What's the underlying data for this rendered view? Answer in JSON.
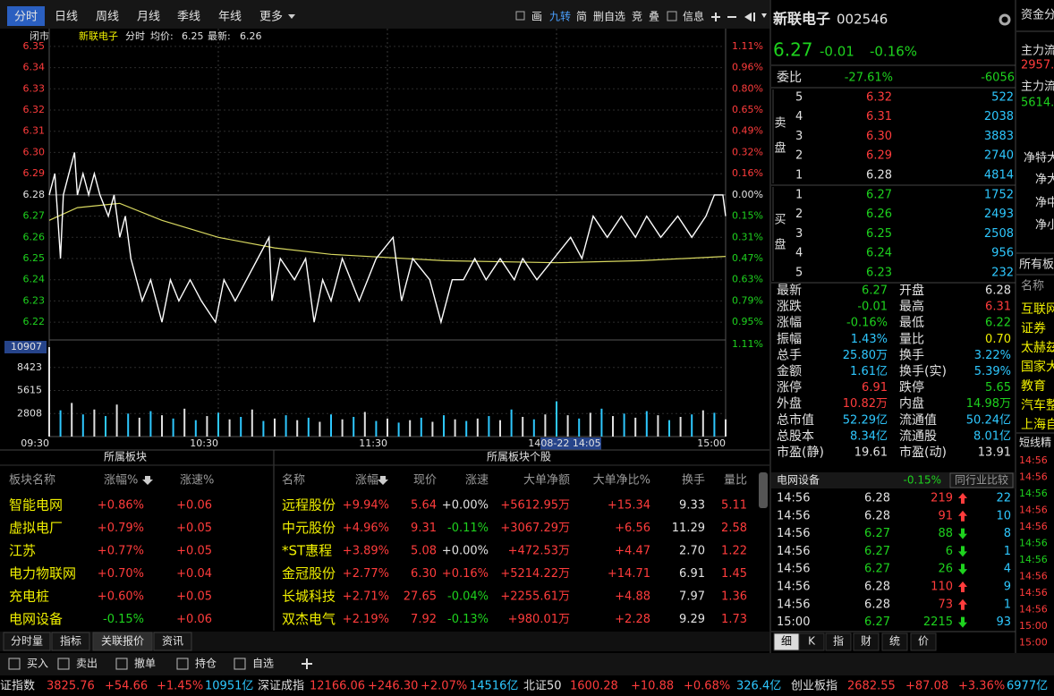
{
  "toolbar": {
    "periods": [
      "分时",
      "日线",
      "周线",
      "月线",
      "季线",
      "年线",
      "更多"
    ],
    "tools": [
      "画",
      "九转",
      "简",
      "删自选",
      "竞",
      "叠",
      "信息"
    ]
  },
  "chart": {
    "header": {
      "status": "闭市",
      "name": "新联电子",
      "mode": "分时",
      "avg_label": "均价:",
      "avg": 6.25,
      "last_label": "最新:",
      "last": 6.26
    },
    "ylim": [
      6.215,
      6.355
    ],
    "yticks": [
      6.35,
      6.34,
      6.33,
      6.32,
      6.31,
      {
        "value": 6.3,
        "label": "6.30"
      },
      6.29,
      6.28,
      6.27,
      6.26,
      6.25,
      6.24,
      6.23,
      6.22
    ],
    "pct_labels": [
      "1.11%",
      "0.96%",
      "0.80%",
      "0.65%",
      "0.49%",
      "0.32%",
      "0.16%",
      "0.00%",
      "0.15%",
      "0.31%",
      "0.47%",
      "0.63%",
      "0.79%",
      "0.95%",
      "1.11%"
    ],
    "xlim": [
      0,
      240
    ],
    "xticks": [
      {
        "value": 0,
        "label": "09:30"
      },
      {
        "value": 60,
        "label": "10:30"
      },
      {
        "value": 120,
        "label": "11:30"
      },
      {
        "value": 180,
        "label": "14:00"
      },
      {
        "value": 240,
        "label": "15:00"
      }
    ],
    "cursor": "08-22 14:05",
    "price": {
      "color": "#ffffff",
      "x": [
        0,
        2,
        3,
        4,
        5,
        7,
        9,
        10,
        12,
        14,
        16,
        18,
        21,
        23,
        25,
        27,
        29,
        33,
        36,
        40,
        43,
        46,
        50,
        54,
        59,
        62,
        66,
        70,
        74,
        78,
        79,
        82,
        87,
        91,
        94,
        97,
        100,
        104,
        107,
        110,
        116,
        122,
        125,
        129,
        135,
        139,
        143,
        147,
        151,
        155,
        160,
        165,
        168,
        173,
        179,
        185,
        189,
        193,
        198,
        203,
        208,
        212,
        217,
        223,
        228,
        233,
        236,
        239,
        240
      ],
      "values": [
        6.28,
        6.29,
        6.27,
        6.25,
        6.28,
        6.29,
        6.3,
        6.28,
        6.29,
        6.28,
        6.29,
        6.28,
        6.27,
        6.28,
        6.26,
        6.27,
        6.25,
        6.23,
        6.24,
        6.22,
        6.24,
        6.23,
        6.24,
        6.23,
        6.22,
        6.24,
        6.23,
        6.24,
        6.25,
        6.26,
        6.23,
        6.25,
        6.24,
        6.25,
        6.22,
        6.24,
        6.23,
        6.25,
        6.24,
        6.23,
        6.25,
        6.26,
        6.23,
        6.25,
        6.24,
        6.22,
        6.24,
        6.24,
        6.25,
        6.24,
        6.25,
        6.24,
        6.25,
        6.24,
        6.25,
        6.26,
        6.25,
        6.27,
        6.26,
        6.27,
        6.26,
        6.27,
        6.26,
        6.27,
        6.26,
        6.27,
        6.28,
        6.28,
        6.27
      ]
    },
    "average": {
      "color": "#d8d860",
      "x": [
        0,
        10,
        25,
        40,
        60,
        80,
        100,
        140,
        180,
        210,
        240
      ],
      "values": [
        6.268,
        6.274,
        6.276,
        6.268,
        6.26,
        6.255,
        6.252,
        6.249,
        6.248,
        6.249,
        6.251
      ]
    },
    "volume": {
      "ylim": [
        0,
        10907
      ],
      "yticks": [
        10907,
        8423,
        5615,
        2808
      ],
      "x": [
        0,
        4,
        8,
        12,
        16,
        20,
        24,
        28,
        32,
        36,
        40,
        44,
        48,
        52,
        56,
        60,
        64,
        68,
        72,
        76,
        80,
        84,
        88,
        92,
        96,
        100,
        104,
        108,
        112,
        116,
        120,
        124,
        128,
        132,
        136,
        140,
        144,
        148,
        152,
        156,
        160,
        164,
        168,
        172,
        176,
        180,
        184,
        188,
        192,
        196,
        200,
        204,
        208,
        212,
        216,
        220,
        224,
        228,
        232,
        236,
        240
      ],
      "values": [
        10907,
        3200,
        4100,
        2700,
        3300,
        2500,
        3900,
        2800,
        2300,
        3100,
        2600,
        2200,
        3400,
        2000,
        2500,
        2900,
        2100,
        2400,
        3300,
        1900,
        2200,
        2600,
        2000,
        2300,
        1800,
        2700,
        2100,
        2400,
        3000,
        1900,
        2200,
        1700,
        2000,
        2300,
        1800,
        2600,
        2100,
        1900,
        2200,
        2500,
        2000,
        3300,
        2400,
        2100,
        2700,
        4300,
        2600,
        2200,
        2900,
        3400,
        2500,
        2800,
        2300,
        3100,
        2600,
        2000,
        2400,
        2700,
        3200,
        2900,
        2100
      ]
    }
  },
  "sectors": {
    "title": "所属板块",
    "headers": [
      "板块名称",
      "涨幅%",
      "涨速%"
    ],
    "rows": [
      [
        "智能电网",
        "+0.86%",
        "+0.06"
      ],
      [
        "虚拟电厂",
        "+0.79%",
        "+0.05"
      ],
      [
        "江苏",
        "+0.77%",
        "+0.05"
      ],
      [
        "电力物联网",
        "+0.70%",
        "+0.04"
      ],
      [
        "充电桩",
        "+0.60%",
        "+0.05"
      ],
      [
        "电网设备",
        "-0.15%",
        "+0.06"
      ]
    ]
  },
  "stocks": {
    "title": "所属板块个股",
    "headers": [
      "名称",
      "涨幅",
      "现价",
      "涨速",
      "大单净额",
      "大单净比%",
      "换手",
      "量比"
    ],
    "rows": [
      [
        "远程股份",
        "+9.94%",
        "5.64",
        "+0.00%",
        "+5612.95万",
        "+15.34",
        "9.33",
        "5.11"
      ],
      [
        "中元股份",
        "+4.96%",
        "9.31",
        "-0.11%",
        "+3067.29万",
        "+6.56",
        "11.29",
        "2.58"
      ],
      [
        "*ST惠程",
        "+3.89%",
        "5.08",
        "+0.00%",
        "+472.53万",
        "+4.47",
        "2.70",
        "1.22"
      ],
      [
        "金冠股份",
        "+2.77%",
        "6.30",
        "+0.16%",
        "+5214.22万",
        "+14.71",
        "6.91",
        "1.45"
      ],
      [
        "长城科技",
        "+2.71%",
        "27.65",
        "-0.04%",
        "+2255.61万",
        "+4.88",
        "7.97",
        "1.36"
      ],
      [
        "双杰电气",
        "+2.19%",
        "7.92",
        "-0.13%",
        "+980.01万",
        "+2.28",
        "9.29",
        "1.73"
      ]
    ]
  },
  "tabs": [
    "分时量",
    "指标",
    "关联报价",
    "资讯"
  ],
  "trade_bar": [
    "买入",
    "卖出",
    "撤单",
    "持仓",
    "自选"
  ],
  "indices": [
    [
      "证指数",
      "3825.76",
      "+54.66",
      "+1.45%",
      "10951亿"
    ],
    [
      "深证成指",
      "12166.06",
      "+246.30",
      "+2.07%",
      "14516亿"
    ],
    [
      "北证50",
      "1600.28",
      "+10.88",
      "+0.68%",
      "326.4亿"
    ],
    [
      "创业板指",
      "2682.55",
      "+87.08",
      "+3.36%",
      "6977亿"
    ]
  ],
  "quote": {
    "name": "新联电子",
    "code": "002546",
    "price": "6.27",
    "change": "-0.01",
    "change_pct": "-0.16%",
    "ratio_label": "委比",
    "ratio_pct": "-27.61%",
    "ratio_diff": "-6056",
    "ask_label": [
      "卖",
      "盘"
    ],
    "bid_label": [
      "买",
      "盘"
    ],
    "asks": [
      [
        "5",
        "6.32",
        "522"
      ],
      [
        "4",
        "6.31",
        "2038"
      ],
      [
        "3",
        "6.30",
        "3883"
      ],
      [
        "2",
        "6.29",
        "2740"
      ],
      [
        "1",
        "6.28",
        "4814"
      ]
    ],
    "bids": [
      [
        "1",
        "6.27",
        "1752"
      ],
      [
        "2",
        "6.26",
        "2493"
      ],
      [
        "3",
        "6.25",
        "2508"
      ],
      [
        "4",
        "6.24",
        "956"
      ],
      [
        "5",
        "6.23",
        "232"
      ]
    ],
    "stats": [
      [
        "最新",
        "6.27",
        "开盘",
        "6.28"
      ],
      [
        "涨跌",
        "-0.01",
        "最高",
        "6.31"
      ],
      [
        "涨幅",
        "-0.16%",
        "最低",
        "6.22"
      ],
      [
        "振幅",
        "1.43%",
        "量比",
        "0.70"
      ],
      [
        "总手",
        "25.80万",
        "换手",
        "3.22%"
      ],
      [
        "金额",
        "1.61亿",
        "换手(实)",
        "5.39%"
      ],
      [
        "涨停",
        "6.91",
        "跌停",
        "5.65"
      ],
      [
        "外盘",
        "10.82万",
        "内盘",
        "14.98万"
      ],
      [
        "总市值",
        "52.29亿",
        "流通值",
        "50.24亿"
      ],
      [
        "总股本",
        "8.34亿",
        "流通股",
        "8.01亿"
      ],
      [
        "市盈(静)",
        "19.61",
        "市盈(动)",
        "13.91"
      ]
    ]
  },
  "trades": {
    "sector": "电网设备",
    "sector_pct": "-0.15%",
    "compare": "同行业比较",
    "rows": [
      [
        "14:56",
        "6.28",
        "219",
        "22"
      ],
      [
        "14:56",
        "6.28",
        "91",
        "10"
      ],
      [
        "14:56",
        "6.27",
        "88",
        "8"
      ],
      [
        "14:56",
        "6.27",
        "6",
        "1"
      ],
      [
        "14:56",
        "6.27",
        "26",
        "4"
      ],
      [
        "14:56",
        "6.28",
        "110",
        "9"
      ],
      [
        "14:56",
        "6.28",
        "73",
        "1"
      ],
      [
        "15:00",
        "6.27",
        "2215",
        "93"
      ]
    ],
    "tabs": [
      "细",
      "K",
      "指",
      "财",
      "统",
      "价"
    ]
  },
  "side": {
    "labels": [
      "资金分",
      "主力流",
      "2957.",
      "主力流",
      "5614.",
      "净特大",
      "净大",
      "净中",
      "净小",
      "所有板",
      "名称"
    ],
    "sectors": [
      "互联网",
      "证券",
      "太赫兹",
      "国家大",
      "教育",
      "汽车整",
      "上海自"
    ],
    "news": "短线精",
    "times": [
      "14:56",
      "14:56",
      "14:56",
      "14:56",
      "14:56",
      "14:56",
      "14:56",
      "14:56",
      "14:56",
      "14:56",
      "15:00",
      "15:00"
    ]
  }
}
